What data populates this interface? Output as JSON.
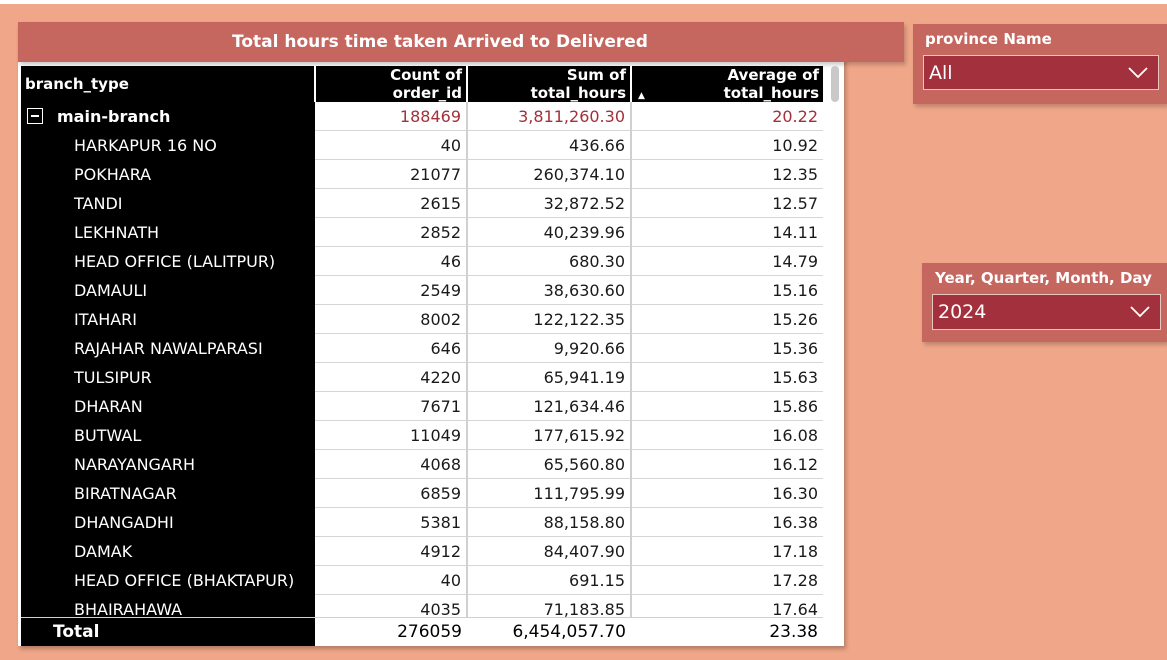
{
  "visual": {
    "title": "Total hours time taken Arrived to Delivered",
    "columns": [
      "branch_type",
      "Count of order_id",
      "Sum of total_hours",
      "Average of total_hours"
    ],
    "group": {
      "name": "main-branch",
      "count": "188469",
      "sum": "3,811,260.30",
      "avg": "20.22"
    },
    "rows": [
      {
        "name": "HARKAPUR 16 NO",
        "count": "40",
        "sum": "436.66",
        "avg": "10.92"
      },
      {
        "name": "POKHARA",
        "count": "21077",
        "sum": "260,374.10",
        "avg": "12.35"
      },
      {
        "name": "TANDI",
        "count": "2615",
        "sum": "32,872.52",
        "avg": "12.57"
      },
      {
        "name": "LEKHNATH",
        "count": "2852",
        "sum": "40,239.96",
        "avg": "14.11"
      },
      {
        "name": "HEAD OFFICE (LALITPUR)",
        "count": "46",
        "sum": "680.30",
        "avg": "14.79"
      },
      {
        "name": "DAMAULI",
        "count": "2549",
        "sum": "38,630.60",
        "avg": "15.16"
      },
      {
        "name": "ITAHARI",
        "count": "8002",
        "sum": "122,122.35",
        "avg": "15.26"
      },
      {
        "name": "RAJAHAR NAWALPARASI",
        "count": "646",
        "sum": "9,920.66",
        "avg": "15.36"
      },
      {
        "name": "TULSIPUR",
        "count": "4220",
        "sum": "65,941.19",
        "avg": "15.63"
      },
      {
        "name": "DHARAN",
        "count": "7671",
        "sum": "121,634.46",
        "avg": "15.86"
      },
      {
        "name": "BUTWAL",
        "count": "11049",
        "sum": "177,615.92",
        "avg": "16.08"
      },
      {
        "name": "NARAYANGARH",
        "count": "4068",
        "sum": "65,560.80",
        "avg": "16.12"
      },
      {
        "name": "BIRATNAGAR",
        "count": "6859",
        "sum": "111,795.99",
        "avg": "16.30"
      },
      {
        "name": "DHANGADHI",
        "count": "5381",
        "sum": "88,158.80",
        "avg": "16.38"
      },
      {
        "name": "DAMAK",
        "count": "4912",
        "sum": "84,407.90",
        "avg": "17.18"
      },
      {
        "name": "HEAD OFFICE (BHAKTAPUR)",
        "count": "40",
        "sum": "691.15",
        "avg": "17.28"
      },
      {
        "name": "BHAIRAHAWA",
        "count": "4035",
        "sum": "71,183.85",
        "avg": "17.64"
      }
    ],
    "total": {
      "label": "Total",
      "count": "276059",
      "sum": "6,454,057.70",
      "avg": "23.38"
    }
  },
  "slicers": {
    "province": {
      "title": "province Name",
      "value": "All"
    },
    "date": {
      "title": "Year, Quarter, Month, Day",
      "value": "2024"
    }
  },
  "icons": {
    "sort": "sort-descending-icon",
    "expander": "collapse-icon",
    "dropdown": "chevron-down-icon"
  },
  "colors": {
    "canvas": "#f0a688",
    "title_bar": "#c5665f",
    "dropdown": "#a3313d",
    "group_values": "#a3303a"
  }
}
